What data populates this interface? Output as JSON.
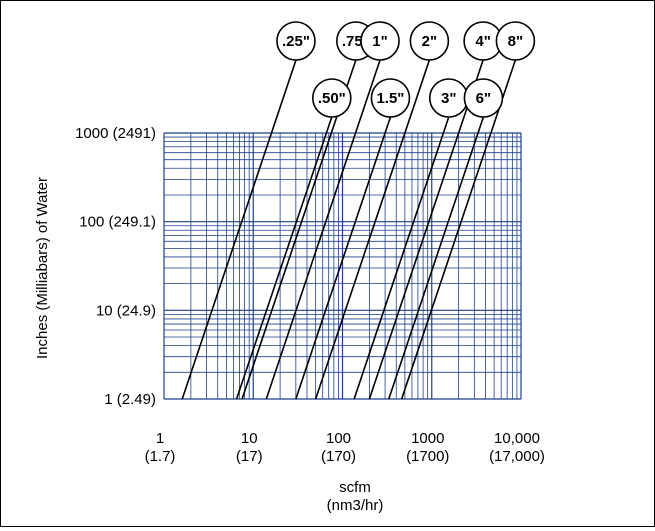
{
  "chart_data": {
    "type": "line",
    "x_scale": "log",
    "y_scale": "log",
    "xlim": [
      1,
      10000
    ],
    "ylim": [
      1,
      1000
    ],
    "grid": true,
    "xlabel": "scfm",
    "xlabel_sub": "(nm3/hr)",
    "ylabel": "Inches (Milliabars) of Water",
    "x_ticks": [
      {
        "value": 1,
        "label": "1",
        "sublabel": "(1.7)"
      },
      {
        "value": 10,
        "label": "10",
        "sublabel": "(17)"
      },
      {
        "value": 100,
        "label": "100",
        "sublabel": "(170)"
      },
      {
        "value": 1000,
        "label": "1000",
        "sublabel": "(1700)"
      },
      {
        "value": 10000,
        "label": "10,000",
        "sublabel": "(17,000)"
      }
    ],
    "y_ticks": [
      {
        "value": 1,
        "label": "1 (2.49)"
      },
      {
        "value": 10,
        "label": "10 (24.9)"
      },
      {
        "value": 100,
        "label": "100 (249.1)"
      },
      {
        "value": 1000,
        "label": "1000 (2491)"
      }
    ],
    "series": [
      {
        "name": ".25\"",
        "points": [
          [
            1.6,
            1
          ],
          [
            16,
            1000
          ]
        ],
        "bubble_row": 0
      },
      {
        "name": ".50\"",
        "points": [
          [
            6.5,
            1
          ],
          [
            66,
            1000
          ]
        ],
        "bubble_row": 1
      },
      {
        "name": ".75\"",
        "points": [
          [
            7.5,
            1
          ],
          [
            75,
            1000
          ]
        ],
        "bubble_row": 0
      },
      {
        "name": "1\"",
        "points": [
          [
            14,
            1
          ],
          [
            140,
            1000
          ]
        ],
        "bubble_row": 0
      },
      {
        "name": "1.5\"",
        "points": [
          [
            30,
            1
          ],
          [
            300,
            1000
          ]
        ],
        "bubble_row": 1
      },
      {
        "name": "2\"",
        "points": [
          [
            50,
            1
          ],
          [
            500,
            1000
          ]
        ],
        "bubble_row": 0
      },
      {
        "name": "3\"",
        "points": [
          [
            135,
            1
          ],
          [
            1350,
            1000
          ]
        ],
        "bubble_row": 1
      },
      {
        "name": "4\"",
        "points": [
          [
            200,
            1
          ],
          [
            2000,
            1000
          ]
        ],
        "bubble_row": 0
      },
      {
        "name": "6\"",
        "points": [
          [
            330,
            1
          ],
          [
            3300,
            1000
          ]
        ],
        "bubble_row": 1
      },
      {
        "name": "8\"",
        "points": [
          [
            460,
            1
          ],
          [
            4600,
            1000
          ]
        ],
        "bubble_row": 0
      }
    ],
    "colors": {
      "grid": "#1f3f8c",
      "lines": "#000000"
    }
  }
}
